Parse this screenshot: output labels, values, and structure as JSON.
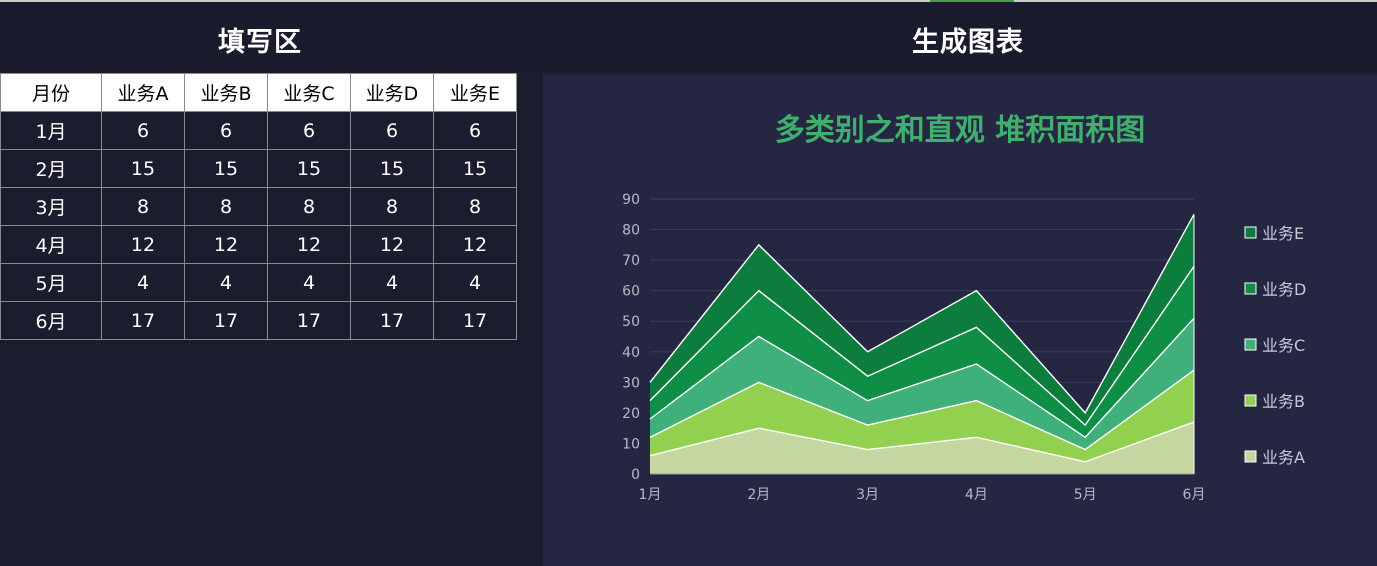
{
  "header": {
    "left_title": "填写区",
    "right_title": "生成图表"
  },
  "table": {
    "headers": [
      "月份",
      "业务A",
      "业务B",
      "业务C",
      "业务D",
      "业务E"
    ],
    "rows": [
      [
        "1月",
        "6",
        "6",
        "6",
        "6",
        "6"
      ],
      [
        "2月",
        "15",
        "15",
        "15",
        "15",
        "15"
      ],
      [
        "3月",
        "8",
        "8",
        "8",
        "8",
        "8"
      ],
      [
        "4月",
        "12",
        "12",
        "12",
        "12",
        "12"
      ],
      [
        "5月",
        "4",
        "4",
        "4",
        "4",
        "4"
      ],
      [
        "6月",
        "17",
        "17",
        "17",
        "17",
        "17"
      ]
    ]
  },
  "chart_data": {
    "type": "area",
    "stacked": true,
    "title": "多类别之和直观 堆积面积图",
    "categories": [
      "1月",
      "2月",
      "3月",
      "4月",
      "5月",
      "6月"
    ],
    "series": [
      {
        "name": "业务A",
        "values": [
          6,
          15,
          8,
          12,
          4,
          17
        ],
        "color": "#c5d7a0"
      },
      {
        "name": "业务B",
        "values": [
          6,
          15,
          8,
          12,
          4,
          17
        ],
        "color": "#92d050"
      },
      {
        "name": "业务C",
        "values": [
          6,
          15,
          8,
          12,
          4,
          17
        ],
        "color": "#3fb07a"
      },
      {
        "name": "业务D",
        "values": [
          6,
          15,
          8,
          12,
          4,
          17
        ],
        "color": "#0f8e45"
      },
      {
        "name": "业务E",
        "values": [
          6,
          15,
          8,
          12,
          4,
          17
        ],
        "color": "#0d7d3e"
      }
    ],
    "ylim": [
      0,
      90
    ],
    "yticks": [
      0,
      10,
      20,
      30,
      40,
      50,
      60,
      70,
      80,
      90
    ],
    "grid": true,
    "legend": "right",
    "title_color": "#3fae6e",
    "background": "#252742"
  }
}
